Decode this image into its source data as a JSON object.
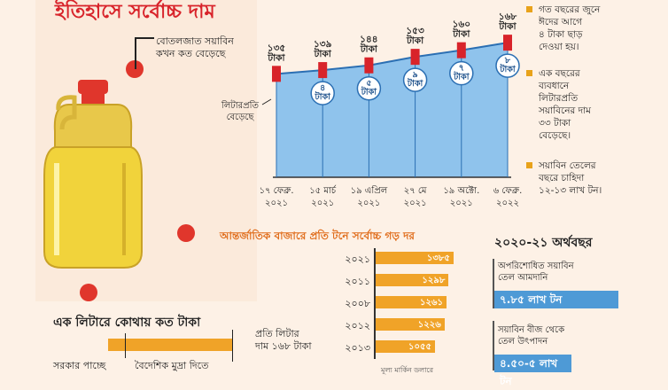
{
  "title": "ইতিহাসে সর্বোচ্চ দাম",
  "callout": "বোতলজাত সয়াবিন\nকখন কত বেড়েছে",
  "per_liter_label": "লিটারপ্রতি\nবেড়েছে",
  "chart_data": [
    {
      "type": "area",
      "categories": [
        "১৭ ফেব্রু.\n২০২১",
        "১৫ মার্চ\n২০২১",
        "১৯ এপ্রিল\n২০২১",
        "২৭ মে\n২০২১",
        "১৯ অক্টো.\n২০২১",
        "৬ ফেব্রু.\n২০২২"
      ],
      "values": [
        135,
        139,
        144,
        153,
        160,
        168
      ],
      "value_labels": [
        "১৩৫\nটাকা",
        "১৩৯\nটাকা",
        "১৪৪\nটাকা",
        "১৫৩\nটাকা",
        "১৬০\nটাকা",
        "১৬৮\nটাকা"
      ],
      "increases": [
        "",
        "৪\nটাকা",
        "৫\nটাকা",
        "৯\nটাকা",
        "৭\nটাকা",
        "৮\nটাকা"
      ],
      "ylim": [
        0,
        180
      ],
      "colors": {
        "area": "#8fc3ec",
        "line": "#2b6fb3",
        "marker": "#d8232a"
      }
    },
    {
      "type": "bar",
      "title": "আন্তর্জাতিক বাজারে প্রতি টনে সর্বোচ্চ গড় দর",
      "categories": [
        "২০২১",
        "২০১১",
        "২০০৮",
        "২০১২",
        "২০১৩"
      ],
      "values": [
        1385,
        1298,
        1261,
        1226,
        1055
      ],
      "value_labels": [
        "১৩৮৫",
        "১২৯৮",
        "১২৬১",
        "১২২৬",
        "১০৫৫"
      ],
      "unit_note": "মূল্য মার্কিন ডলারে",
      "xlim": [
        0,
        1450
      ],
      "colors": {
        "bar": "#f0a328"
      }
    }
  ],
  "notes": [
    "গত বছরের জুনে\nঈদের আগে\n৪ টাকা ছাড়\nদেওয়া হয়।",
    "এক বছরের\nব্যবধানে\nলিটারপ্রতি\nসয়াবিনের দাম\n৩৩ টাকা\nবেড়েছে।",
    "সয়াবিন তেলের\nবছরে চাহিদা\n১২-১৩ লাখ টন।"
  ],
  "fiscal_year": {
    "title": "২০২০-২১ অর্থবছর",
    "items": [
      {
        "label": "অপরিশোধিত সয়াবিন\nতেল আমদানি",
        "value": "৭.৮৫ লাখ টন",
        "amount": 7.85
      },
      {
        "label": "সয়াবিন বীজ থেকে\nতেল উৎপাদন",
        "value": "৪.৫০-৫ লাখ টন",
        "amount": 4.75
      }
    ]
  },
  "breakdown": {
    "title": "এক লিটারে কোথায় কত টাকা",
    "price": "প্রতি লিটার\nদাম ১৬৮ টাকা",
    "labels": [
      "সরকার পাচ্ছে",
      "বৈদেশিক মুদ্রা দিতে"
    ]
  }
}
